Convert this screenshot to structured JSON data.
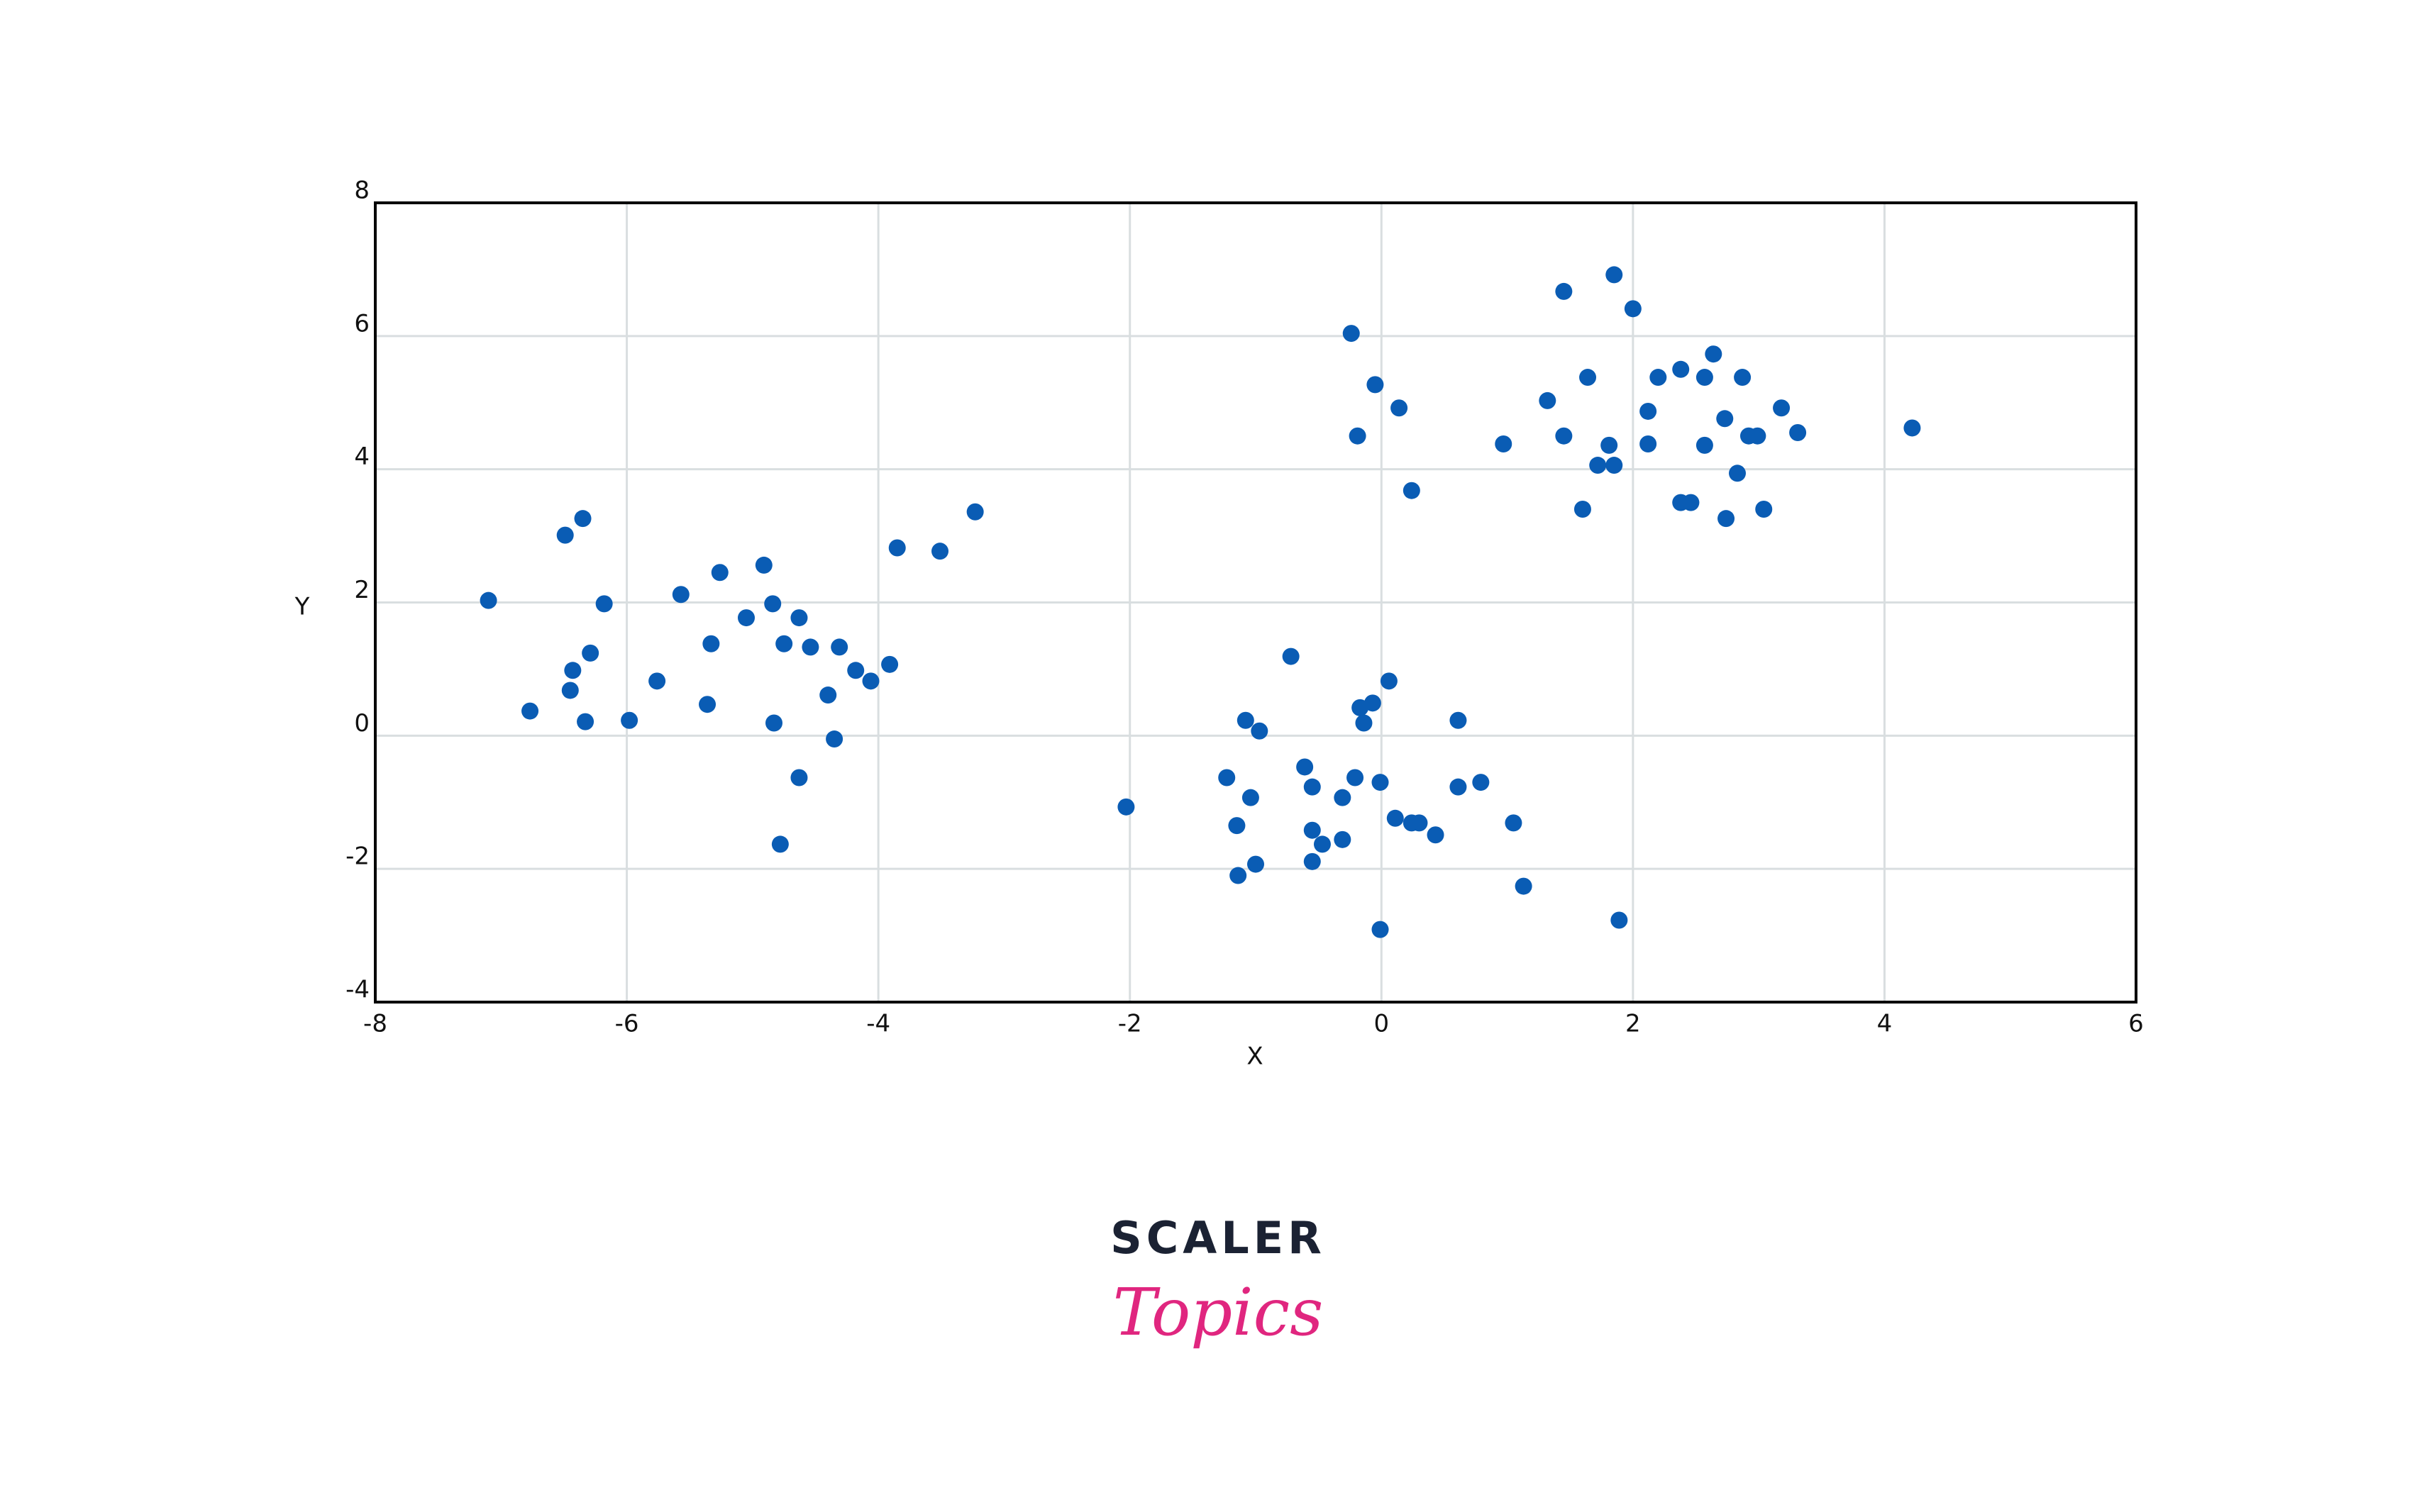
{
  "chart_data": {
    "type": "scatter",
    "xlabel": "X",
    "ylabel": "Y",
    "color": "#0a5cb4",
    "grid": true,
    "xlim": [
      -8,
      6
    ],
    "ylim": [
      -4,
      8
    ],
    "xticks": [
      -8,
      -6,
      -4,
      -2,
      0,
      2,
      4,
      6
    ],
    "yticks": [
      -4,
      -2,
      0,
      2,
      4,
      6,
      8
    ],
    "x": [
      -7.1,
      -6.77,
      -6.49,
      -6.35,
      -6.45,
      -6.43,
      -6.33,
      -6.29,
      -6.18,
      -5.98,
      -5.76,
      -5.57,
      -5.36,
      -5.33,
      -5.26,
      -5.05,
      -4.91,
      -4.84,
      -4.83,
      -4.78,
      -4.75,
      -4.63,
      -4.63,
      -4.54,
      -4.4,
      -4.35,
      -4.31,
      -4.18,
      -4.06,
      -3.91,
      -3.85,
      -3.51,
      -3.23,
      -2.03,
      -1.23,
      -1.15,
      -1.14,
      -1.08,
      -1.04,
      -1.0,
      -0.97,
      -0.72,
      -0.61,
      -0.55,
      -0.55,
      -0.55,
      -0.47,
      -0.31,
      -0.31,
      -0.21,
      -0.17,
      -0.14,
      -0.07,
      -0.01,
      -0.01,
      0.06,
      0.11,
      0.24,
      0.3,
      0.43,
      0.61,
      0.61,
      0.79,
      1.05,
      1.13,
      1.89,
      -0.24,
      -0.19,
      -0.05,
      0.14,
      0.24,
      0.97,
      1.32,
      1.45,
      1.45,
      1.6,
      1.64,
      1.72,
      1.81,
      1.85,
      1.85,
      2.0,
      2.12,
      2.12,
      2.2,
      2.38,
      2.38,
      2.46,
      2.57,
      2.57,
      2.64,
      2.73,
      2.74,
      2.83,
      2.87,
      2.92,
      2.99,
      3.04,
      3.18,
      3.31,
      4.22
    ],
    "values": [
      2.03,
      0.37,
      3.01,
      3.26,
      0.68,
      0.98,
      0.21,
      1.24,
      1.98,
      0.23,
      0.82,
      2.12,
      0.47,
      1.38,
      2.45,
      1.77,
      2.56,
      1.98,
      0.19,
      -1.63,
      1.38,
      1.77,
      -0.63,
      1.33,
      0.61,
      -0.05,
      1.33,
      0.98,
      0.82,
      1.07,
      2.82,
      2.77,
      3.36,
      -1.07,
      -0.63,
      -1.35,
      -2.1,
      0.23,
      -0.93,
      -1.93,
      0.07,
      1.19,
      -0.47,
      -0.77,
      -1.42,
      -1.89,
      -1.63,
      -0.93,
      -1.56,
      -0.63,
      0.42,
      0.19,
      0.49,
      -0.7,
      -2.91,
      0.82,
      -1.24,
      -1.31,
      -1.31,
      -1.49,
      0.23,
      -0.77,
      -0.7,
      -1.31,
      -2.26,
      -2.77,
      6.04,
      4.5,
      5.27,
      4.92,
      3.68,
      4.38,
      5.03,
      6.67,
      4.5,
      3.4,
      5.38,
      4.06,
      4.36,
      4.06,
      6.92,
      6.41,
      4.87,
      4.38,
      5.38,
      5.5,
      3.5,
      3.5,
      5.38,
      4.36,
      5.73,
      4.76,
      3.26,
      3.94,
      5.38,
      4.5,
      4.5,
      3.4,
      4.92,
      4.55,
      4.62
    ]
  },
  "logo": {
    "line1": "SCALER",
    "line2": "Topics"
  }
}
